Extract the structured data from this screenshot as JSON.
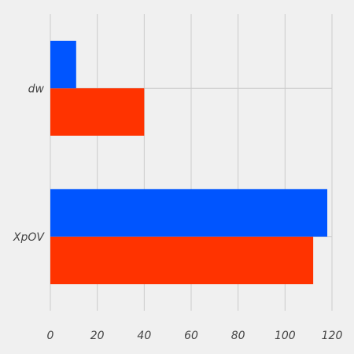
{
  "chart_data": {
    "type": "bar",
    "orientation": "horizontal",
    "categories": [
      "XpOV",
      "dw"
    ],
    "series": [
      {
        "values": [
          112,
          40
        ],
        "color": "#ff3300"
      },
      {
        "values": [
          118,
          11
        ],
        "color": "#0055ff"
      }
    ],
    "xlim": [
      0,
      120
    ],
    "xticks": [
      0,
      20,
      40,
      60,
      80,
      100,
      120
    ],
    "title": "",
    "xlabel": "",
    "ylabel": "",
    "grid": true,
    "legend": "none"
  },
  "colors": {
    "background": "#f0f0f0",
    "grid": "#cbcbcb",
    "text": "#444444"
  }
}
